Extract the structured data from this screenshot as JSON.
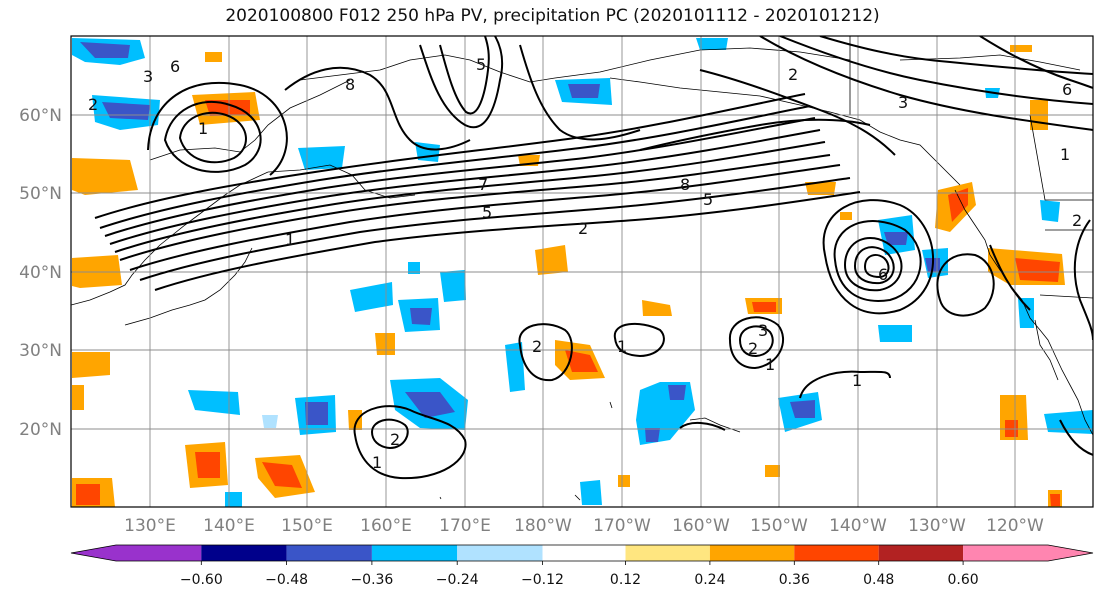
{
  "title": "2020100800 F012 250 hPa PV, precipitation PC (2020101112 - 2020101212)",
  "latitude_labels": [
    "60°N",
    "50°N",
    "40°N",
    "30°N",
    "20°N"
  ],
  "longitude_labels": [
    "130°E",
    "140°E",
    "150°E",
    "160°E",
    "170°E",
    "180°W",
    "170°W",
    "160°W",
    "150°W",
    "140°W",
    "130°W",
    "120°W"
  ],
  "colorbar": {
    "tick_labels": [
      "−0.60",
      "−0.48",
      "−0.36",
      "−0.24",
      "−0.12",
      "0.12",
      "0.24",
      "0.36",
      "0.48",
      "0.60"
    ],
    "colors": [
      "#9932cc",
      "#00008b",
      "#3a55c8",
      "#00bfff",
      "#b0e2ff",
      "#ffffff",
      "#ffe680",
      "#ffa500",
      "#ff4500",
      "#b22222",
      "#ff85b0"
    ]
  },
  "contour_labels": [
    "3",
    "6",
    "2",
    "1",
    "5",
    "8",
    "2",
    "5",
    "8",
    "3",
    "6",
    "2",
    "5",
    "7",
    "1",
    "6",
    "1",
    "2",
    "1",
    "2",
    "3",
    "1",
    "2",
    "1",
    "1",
    "2"
  ]
}
